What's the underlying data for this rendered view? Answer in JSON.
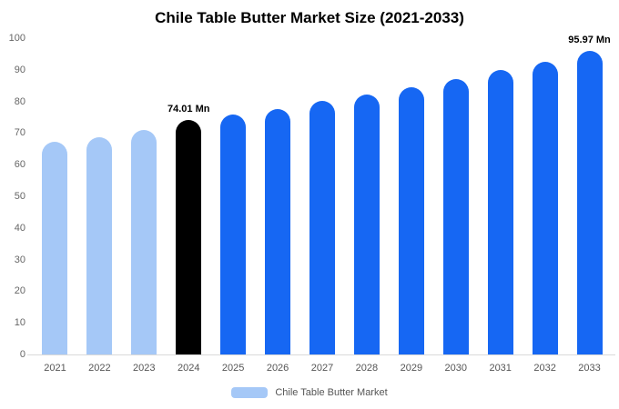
{
  "title": "Chile Table Butter Market Size (2021-2033)",
  "legend": {
    "label": "Chile Table Butter Market",
    "swatch_color": "#a5c8f7"
  },
  "colors": {
    "light_blue": "#a5c8f7",
    "blue": "#1667f3",
    "black": "#000000"
  },
  "chart_data": {
    "type": "bar",
    "title": "Chile Table Butter Market Size (2021-2033)",
    "categories": [
      "2021",
      "2022",
      "2023",
      "2024",
      "2025",
      "2026",
      "2027",
      "2028",
      "2029",
      "2030",
      "2031",
      "2032",
      "2033"
    ],
    "values": [
      67.2,
      68.8,
      71.0,
      74.01,
      75.8,
      77.6,
      80.1,
      82.3,
      84.6,
      87.0,
      89.9,
      92.4,
      95.97
    ],
    "bar_colors": [
      "#a5c8f7",
      "#a5c8f7",
      "#a5c8f7",
      "#000000",
      "#1667f3",
      "#1667f3",
      "#1667f3",
      "#1667f3",
      "#1667f3",
      "#1667f3",
      "#1667f3",
      "#1667f3",
      "#1667f3"
    ],
    "data_labels": [
      null,
      null,
      null,
      "74.01 Mn",
      null,
      null,
      null,
      null,
      null,
      null,
      null,
      null,
      "95.97 Mn"
    ],
    "xlabel": "",
    "ylabel": "",
    "ylim": [
      0,
      100
    ],
    "yticks": [
      0,
      10,
      20,
      30,
      40,
      50,
      60,
      70,
      80,
      90,
      100
    ],
    "grid": false,
    "legend_position": "bottom",
    "legend_entries": [
      "Chile Table Butter Market"
    ]
  }
}
